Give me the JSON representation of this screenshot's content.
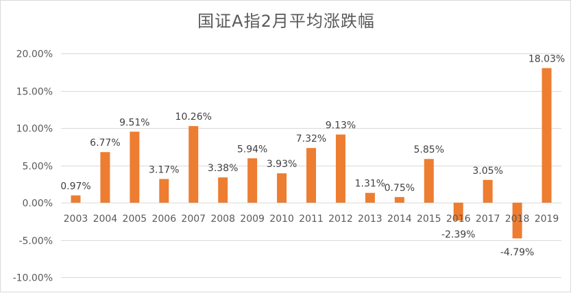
{
  "chart_data": {
    "type": "bar",
    "title": "国证A指2月平均涨跌幅",
    "xlabel": "",
    "ylabel": "",
    "categories": [
      "2003",
      "2004",
      "2005",
      "2006",
      "2007",
      "2008",
      "2009",
      "2010",
      "2011",
      "2012",
      "2013",
      "2014",
      "2015",
      "2016",
      "2017",
      "2018",
      "2019"
    ],
    "values": [
      0.97,
      6.77,
      9.51,
      3.17,
      10.26,
      3.38,
      5.94,
      3.93,
      7.32,
      9.13,
      1.31,
      0.75,
      5.85,
      -2.39,
      3.05,
      -4.79,
      18.03
    ],
    "data_labels": [
      "0.97%",
      "6.77%",
      "9.51%",
      "3.17%",
      "10.26%",
      "3.38%",
      "5.94%",
      "3.93%",
      "7.32%",
      "9.13%",
      "1.31%",
      "0.75%",
      "5.85%",
      "-2.39%",
      "3.05%",
      "-4.79%",
      "18.03%"
    ],
    "ylim": [
      -10,
      20
    ],
    "y_ticks": [
      20,
      15,
      10,
      5,
      0,
      -5,
      -10
    ],
    "y_tick_labels": [
      "20.00%",
      "15.00%",
      "10.00%",
      "5.00%",
      "0.00%",
      "-5.00%",
      "-10.00%"
    ],
    "grid": true,
    "legend": "none",
    "bar_color": "#ED7D31"
  }
}
